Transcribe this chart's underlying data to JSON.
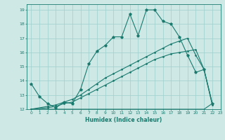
{
  "title": "",
  "xlabel": "Humidex (Indice chaleur)",
  "xlim": [
    -0.5,
    23
  ],
  "ylim": [
    12,
    19.4
  ],
  "yticks": [
    12,
    13,
    14,
    15,
    16,
    17,
    18,
    19
  ],
  "xticks": [
    0,
    1,
    2,
    3,
    4,
    5,
    6,
    7,
    8,
    9,
    10,
    11,
    12,
    13,
    14,
    15,
    16,
    17,
    18,
    19,
    20,
    21,
    22,
    23
  ],
  "bg_color": "#cde8e5",
  "grid_color": "#9ecfcc",
  "line_color": "#1a7a6e",
  "line1_x": [
    0,
    1,
    2,
    3,
    4,
    5,
    6,
    7,
    8,
    9,
    10,
    11,
    12,
    13,
    14,
    15,
    16,
    17,
    18,
    19,
    20,
    21,
    22
  ],
  "line1_y": [
    13.8,
    12.9,
    12.4,
    12.1,
    12.5,
    12.4,
    13.4,
    15.2,
    16.1,
    16.5,
    17.1,
    17.1,
    18.7,
    17.2,
    19.0,
    19.0,
    18.2,
    18.0,
    17.1,
    15.8,
    14.6,
    14.8,
    12.4
  ],
  "line2_x": [
    0,
    1,
    2,
    3,
    4,
    5,
    6,
    7,
    8,
    9,
    10,
    11,
    12,
    13,
    14,
    15,
    16,
    17,
    18,
    19,
    20,
    21,
    22
  ],
  "line2_y": [
    12.0,
    12.0,
    12.0,
    12.0,
    12.0,
    12.0,
    12.0,
    12.0,
    12.0,
    12.0,
    12.0,
    12.0,
    12.0,
    12.0,
    12.0,
    12.0,
    12.0,
    12.0,
    12.0,
    12.0,
    12.0,
    12.0,
    12.4
  ],
  "line3_x": [
    0,
    2,
    3,
    4,
    5,
    6,
    7,
    8,
    9,
    10,
    11,
    12,
    13,
    14,
    15,
    16,
    17,
    18,
    19,
    20,
    21,
    22
  ],
  "line3_y": [
    12.0,
    12.2,
    12.3,
    12.5,
    12.7,
    13.0,
    13.4,
    13.8,
    14.2,
    14.5,
    14.8,
    15.1,
    15.4,
    15.7,
    16.0,
    16.3,
    16.6,
    16.8,
    17.0,
    15.8,
    14.8,
    12.4
  ],
  "line4_x": [
    0,
    2,
    3,
    4,
    5,
    6,
    7,
    8,
    9,
    10,
    11,
    12,
    13,
    14,
    15,
    16,
    17,
    18,
    19,
    20,
    21,
    22
  ],
  "line4_y": [
    12.0,
    12.1,
    12.2,
    12.4,
    12.5,
    12.8,
    13.1,
    13.4,
    13.7,
    14.0,
    14.3,
    14.6,
    14.9,
    15.2,
    15.5,
    15.7,
    15.9,
    16.0,
    16.1,
    16.2,
    14.8,
    12.3
  ]
}
